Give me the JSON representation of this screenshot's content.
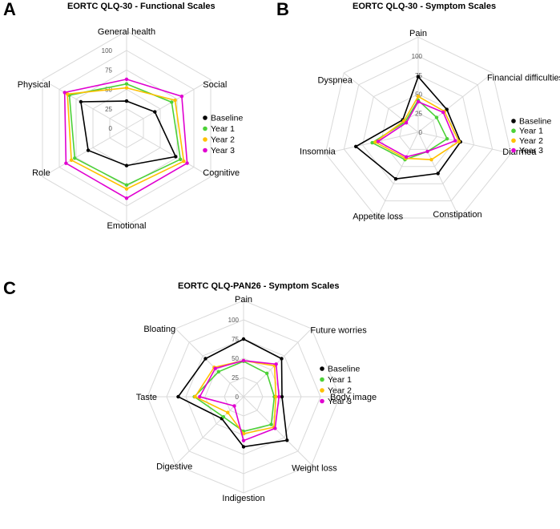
{
  "panels": [
    {
      "letter": "A",
      "title": "EORTC QLQ-30 - Functional Scales"
    },
    {
      "letter": "B",
      "title": "EORTC QLQ-30 - Symptom Scales"
    },
    {
      "letter": "C",
      "title": "EORTC QLQ-PAN26 - Symptom Scales"
    }
  ],
  "chart_data": [
    {
      "type": "radar",
      "title": "EORTC QLQ-30 - Functional Scales",
      "axes": [
        "General health",
        "Social",
        "Cognitive",
        "Emotional",
        "Role",
        "Physical"
      ],
      "ticks": [
        0,
        25,
        50,
        75,
        100
      ],
      "range": [
        0,
        100
      ],
      "series": [
        {
          "name": "Baseline",
          "color": "#000000",
          "values": [
            35,
            42,
            73,
            48,
            57,
            68
          ]
        },
        {
          "name": "Year 1",
          "color": "#4cd137",
          "values": [
            57,
            67,
            80,
            73,
            77,
            85
          ]
        },
        {
          "name": "Year 2",
          "color": "#ffc000",
          "values": [
            52,
            72,
            85,
            78,
            82,
            88
          ]
        },
        {
          "name": "Year 3",
          "color": "#e000d0",
          "values": [
            63,
            82,
            90,
            90,
            90,
            92
          ]
        }
      ]
    },
    {
      "type": "radar",
      "title": "EORTC QLQ-30 - Symptom Scales",
      "axes": [
        "Pain",
        "Financial difficulties",
        "Diarrhea",
        "Constipation",
        "Appetite loss",
        "Insomnia",
        "Dyspnea"
      ],
      "ticks": [
        0,
        25,
        50,
        75,
        100
      ],
      "range": [
        0,
        100
      ],
      "series": [
        {
          "name": "Baseline",
          "color": "#000000",
          "values": [
            73,
            48,
            57,
            60,
            68,
            84,
            26
          ]
        },
        {
          "name": "Year 1",
          "color": "#4cd137",
          "values": [
            42,
            31,
            39,
            28,
            40,
            62,
            22
          ]
        },
        {
          "name": "Year 2",
          "color": "#ffc000",
          "values": [
            47,
            44,
            55,
            40,
            38,
            58,
            24
          ]
        },
        {
          "name": "Year 3",
          "color": "#e000d0",
          "values": [
            40,
            42,
            50,
            28,
            36,
            54,
            20
          ]
        }
      ]
    },
    {
      "type": "radar",
      "title": "EORTC QLQ-PAN26 - Symptom Scales",
      "axes": [
        "Pain",
        "Future worries",
        "Body image",
        "Weight loss",
        "Indigestion",
        "Digestive",
        "Taste",
        "Bloating"
      ],
      "ticks": [
        0,
        25,
        50,
        75,
        100
      ],
      "range": [
        0,
        100
      ],
      "series": [
        {
          "name": "Baseline",
          "color": "#000000",
          "values": [
            75,
            70,
            50,
            80,
            65,
            40,
            85,
            70
          ]
        },
        {
          "name": "Year 1",
          "color": "#4cd137",
          "values": [
            46,
            43,
            40,
            51,
            45,
            37,
            64,
            46
          ]
        },
        {
          "name": "Year 2",
          "color": "#ffc000",
          "values": [
            47,
            57,
            42,
            56,
            48,
            29,
            63,
            54
          ]
        },
        {
          "name": "Year 3",
          "color": "#e000d0",
          "values": [
            47,
            60,
            46,
            58,
            57,
            17,
            57,
            52
          ]
        }
      ]
    }
  ]
}
